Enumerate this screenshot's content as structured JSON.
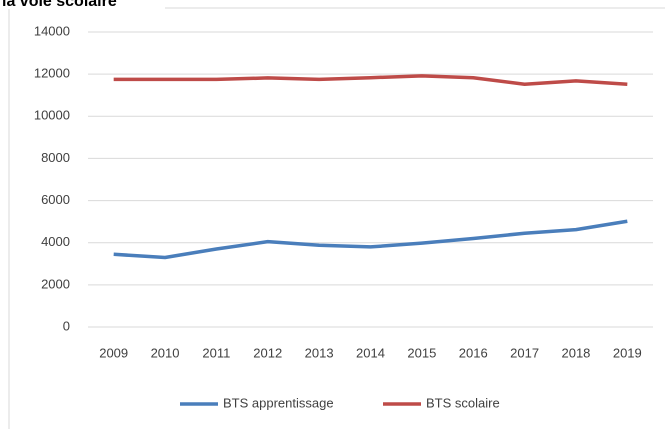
{
  "chart_data": {
    "type": "line",
    "title": "la voie scolaire",
    "categories": [
      "2009",
      "2010",
      "2011",
      "2012",
      "2013",
      "2014",
      "2015",
      "2016",
      "2017",
      "2018",
      "2019"
    ],
    "series": [
      {
        "name": "BTS apprentissage",
        "color": "#4a7ebb",
        "values": [
          3450,
          3300,
          3700,
          4050,
          3880,
          3800,
          3980,
          4200,
          4450,
          4620,
          5020
        ]
      },
      {
        "name": "BTS scolaire",
        "color": "#be4b48",
        "values": [
          11750,
          11750,
          11750,
          11820,
          11750,
          11830,
          11920,
          11830,
          11520,
          11680,
          11520
        ]
      }
    ],
    "ylim": [
      0,
      14000
    ],
    "yticks": [
      0,
      2000,
      4000,
      6000,
      8000,
      10000,
      12000,
      14000
    ],
    "grid": true,
    "legend": "bottom"
  }
}
